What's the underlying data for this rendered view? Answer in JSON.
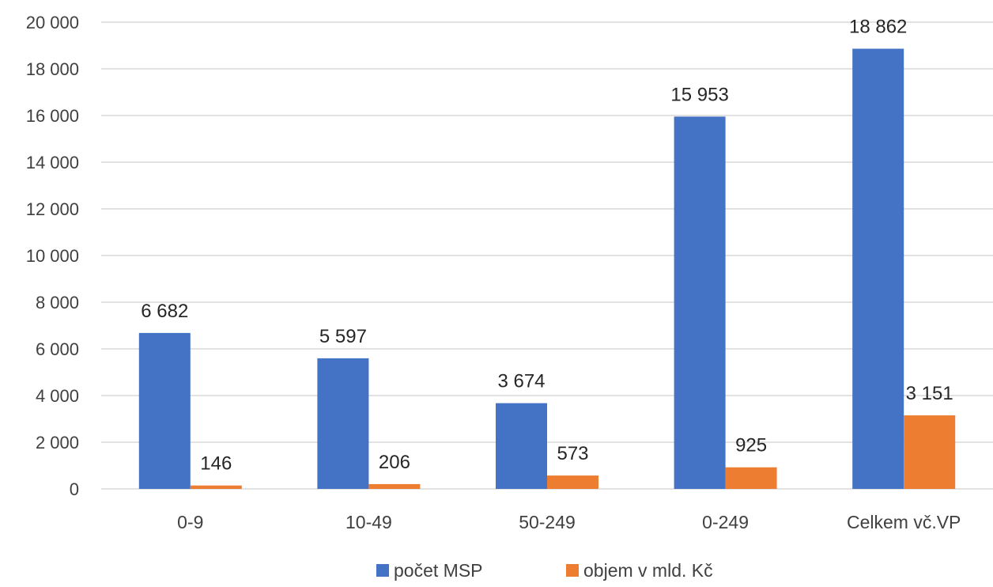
{
  "chart_data": {
    "type": "bar",
    "categories": [
      "0-9",
      "10-49",
      "50-249",
      "0-249",
      "Celkem vč.VP"
    ],
    "series": [
      {
        "name": "počet MSP",
        "values": [
          6682,
          5597,
          3674,
          15953,
          18862
        ],
        "labels": [
          "6 682",
          "5 597",
          "3 674",
          "15 953",
          "18 862"
        ]
      },
      {
        "name": "objem v mld. Kč",
        "values": [
          146,
          206,
          573,
          925,
          3151
        ],
        "labels": [
          "146",
          "206",
          "573",
          "925",
          "3 151"
        ]
      }
    ],
    "colors": [
      "#4472c4",
      "#ed7d31"
    ],
    "ylim": [
      0,
      20000
    ],
    "yticks": [
      0,
      2000,
      4000,
      6000,
      8000,
      10000,
      12000,
      14000,
      16000,
      18000,
      20000
    ],
    "ytick_labels": [
      "0",
      "2 000",
      "4 000",
      "6 000",
      "8 000",
      "10 000",
      "12 000",
      "14 000",
      "16 000",
      "18 000",
      "20 000"
    ],
    "grid": true,
    "legend_position": "bottom",
    "title": "",
    "xlabel": "",
    "ylabel": ""
  }
}
